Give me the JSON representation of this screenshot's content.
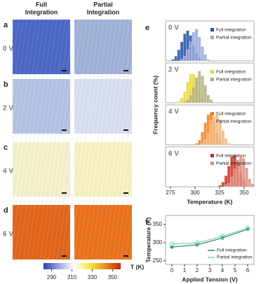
{
  "figure": {
    "column_headers": [
      [
        "Full",
        "Integration"
      ],
      [
        "Partial",
        "Integration"
      ]
    ],
    "panel_letters": [
      "a",
      "b",
      "c",
      "d"
    ],
    "voltages": [
      "0 V",
      "2 V",
      "4 V",
      "6 V"
    ],
    "hist_letter": "e",
    "line_letter": "f"
  },
  "chart_data": [
    {
      "type": "colorbar",
      "label": "T (K)",
      "lim": [
        282,
        358
      ],
      "ticks": [
        290,
        310,
        330,
        350
      ],
      "colors": [
        "#2a3fae",
        "#9aa8dc",
        "#ffffff",
        "#f5e63c",
        "#f08a1c",
        "#c4220f"
      ]
    },
    {
      "type": "histogram",
      "label": "0 V",
      "ylabel": "Frequency count (%)",
      "xlim": [
        270,
        360
      ],
      "ylim": [
        0,
        25
      ],
      "series": [
        {
          "name": "Full integration",
          "color": "#1f4fa8",
          "bins": [
            276,
            279,
            282,
            285,
            288,
            291,
            294,
            297,
            300,
            303,
            306
          ],
          "values": [
            1,
            3,
            7,
            12,
            17,
            19,
            16,
            10,
            5,
            2
          ]
        },
        {
          "name": "Partial integration",
          "color": "#97a6da",
          "bins": [
            285,
            288,
            291,
            294,
            297,
            300,
            303,
            306,
            309,
            312,
            315
          ],
          "values": [
            1,
            3,
            7,
            12,
            18,
            20,
            15,
            9,
            4,
            1
          ]
        }
      ]
    },
    {
      "type": "histogram",
      "label": "2 V",
      "xlim": [
        270,
        360
      ],
      "ylim": [
        0,
        25
      ],
      "series": [
        {
          "name": "Full integration",
          "color": "#e8d62a",
          "bins": [
            282,
            285,
            288,
            291,
            294,
            297,
            300,
            303,
            306,
            309,
            312
          ],
          "values": [
            1,
            3,
            7,
            13,
            18,
            18,
            13,
            7,
            3,
            1
          ]
        },
        {
          "name": "Partial integration",
          "color": "#b0ae7c",
          "bins": [
            288,
            291,
            294,
            297,
            300,
            303,
            306,
            309,
            312,
            315,
            318
          ],
          "values": [
            1,
            2,
            5,
            10,
            16,
            20,
            17,
            11,
            5,
            2
          ]
        }
      ]
    },
    {
      "type": "histogram",
      "label": "4 V",
      "xlim": [
        270,
        360
      ],
      "ylim": [
        0,
        25
      ],
      "series": [
        {
          "name": "Full integration",
          "color": "#f07f1c",
          "bins": [
            300,
            303,
            306,
            309,
            312,
            315,
            318,
            321,
            324,
            327,
            330
          ],
          "values": [
            1,
            3,
            8,
            14,
            19,
            20,
            14,
            8,
            3,
            1
          ]
        },
        {
          "name": "Partial integration",
          "color": "#f2b47c",
          "bins": [
            306,
            309,
            312,
            315,
            318,
            321,
            324,
            327,
            330,
            333,
            336
          ],
          "values": [
            1,
            3,
            7,
            13,
            18,
            20,
            16,
            9,
            4,
            1
          ]
        }
      ]
    },
    {
      "type": "histogram",
      "label": "6 V",
      "xlim": [
        270,
        360
      ],
      "ylim": [
        0,
        25
      ],
      "xticks": [
        275,
        300,
        325,
        350
      ],
      "xlabel": "Temperature (K)",
      "series": [
        {
          "name": "Full integration",
          "color": "#cc2a1a",
          "bins": [
            324,
            327,
            330,
            333,
            336,
            339,
            342,
            345,
            348,
            351,
            354
          ],
          "values": [
            1,
            3,
            7,
            13,
            19,
            20,
            16,
            9,
            4,
            1
          ]
        },
        {
          "name": "Partial integration",
          "color": "#d98c7c",
          "bins": [
            330,
            333,
            336,
            339,
            342,
            345,
            348,
            351,
            354,
            357,
            360
          ],
          "values": [
            1,
            2,
            6,
            11,
            17,
            20,
            18,
            12,
            5,
            2
          ]
        }
      ]
    },
    {
      "type": "line",
      "xlabel": "Applied Tension (V)",
      "ylabel": "Temperature (K)",
      "x": [
        0,
        2,
        4,
        6
      ],
      "xlim": [
        -0.5,
        6.5
      ],
      "xticks": [
        0,
        1,
        2,
        3,
        4,
        5,
        6
      ],
      "ylim": [
        240,
        375
      ],
      "yticks": [
        250,
        300,
        350
      ],
      "series": [
        {
          "name": "Full integration",
          "color": "#2a8c6e",
          "values": [
            288,
            294,
            313,
            337
          ]
        },
        {
          "name": "Partial integration",
          "color": "#7fd0c0",
          "values": [
            296,
            299,
            318,
            340
          ]
        }
      ]
    }
  ]
}
